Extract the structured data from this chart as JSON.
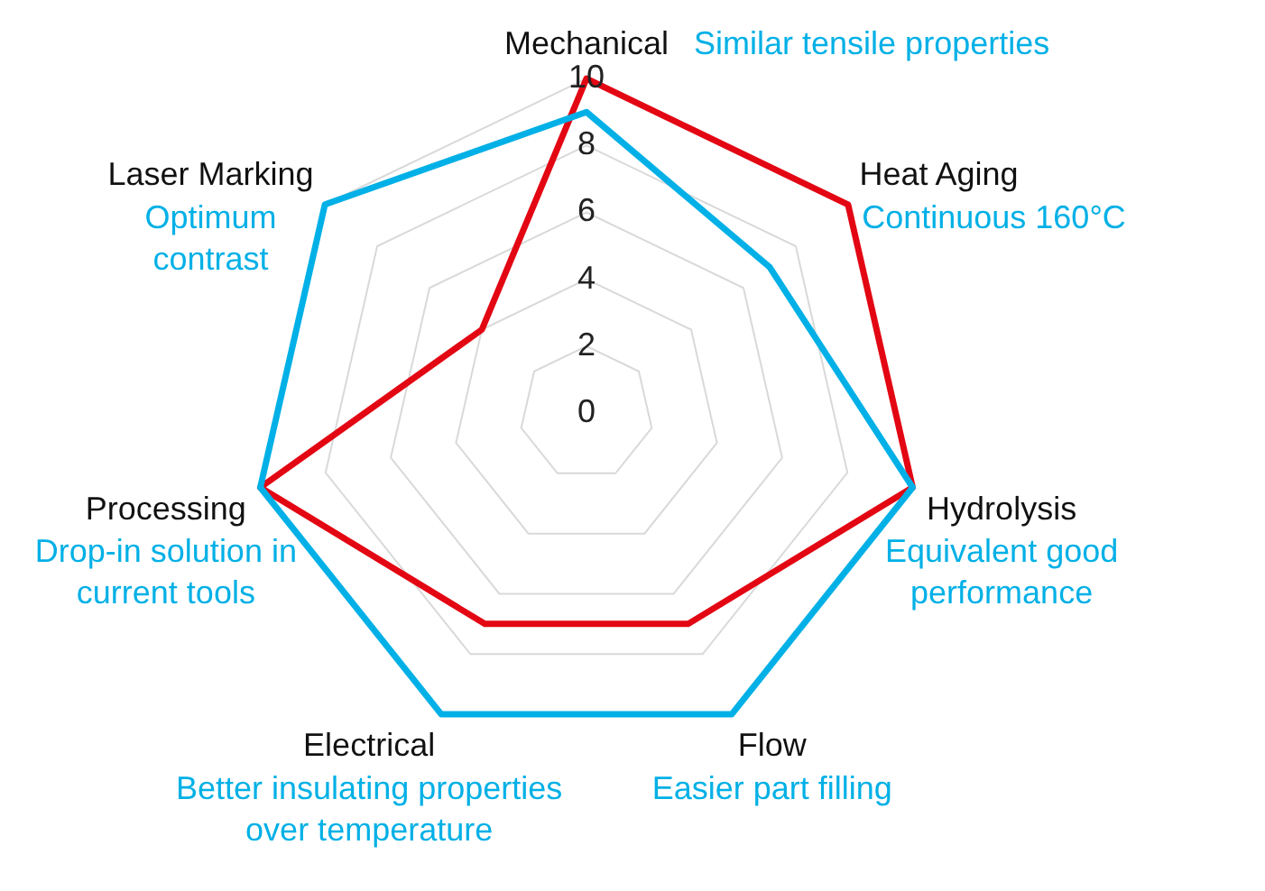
{
  "chart_data": {
    "type": "radar",
    "categories": [
      "Mechanical",
      "Heat Aging",
      "Hydrolysis",
      "Flow",
      "Electrical",
      "Processing",
      "Laser Marking"
    ],
    "series": [
      {
        "color": "#00b0e6",
        "values": [
          9,
          7,
          10,
          10,
          10,
          10,
          10
        ]
      },
      {
        "color": "#e30613",
        "values": [
          10,
          10,
          10,
          7,
          7,
          10,
          4
        ]
      }
    ],
    "ylim": [
      0,
      10
    ],
    "yticks": [
      0,
      2,
      4,
      6,
      8,
      10
    ],
    "grid": true,
    "legend": false,
    "marker": "none",
    "annotations": [
      "Similar tensile properties",
      "Continuous 160°C",
      "Equivalent good performance",
      "Easier part filling",
      "Better insulating properties over temperature",
      "Drop-in solution in current tools",
      "Optimum contrast"
    ]
  }
}
